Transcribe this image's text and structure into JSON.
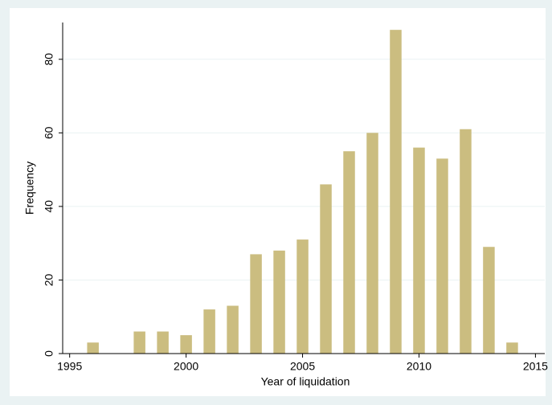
{
  "chart_data": {
    "type": "bar",
    "x": [
      1996,
      1998,
      1999,
      2000,
      2001,
      2002,
      2003,
      2004,
      2005,
      2006,
      2007,
      2008,
      2009,
      2010,
      2011,
      2012,
      2013,
      2014
    ],
    "values": [
      3,
      6,
      6,
      5,
      12,
      13,
      27,
      28,
      31,
      46,
      55,
      60,
      88,
      56,
      53,
      61,
      29,
      3
    ],
    "color": "#cbbd80",
    "xlabel": "Year of liquidation",
    "ylabel": "Frequency",
    "xlim": [
      1994.7,
      2015.4
    ],
    "xticks": [
      1995,
      2000,
      2005,
      2010,
      2015
    ],
    "ylim": [
      0,
      90
    ],
    "yticks": [
      0,
      20,
      40,
      60,
      80
    ],
    "grid": true
  }
}
